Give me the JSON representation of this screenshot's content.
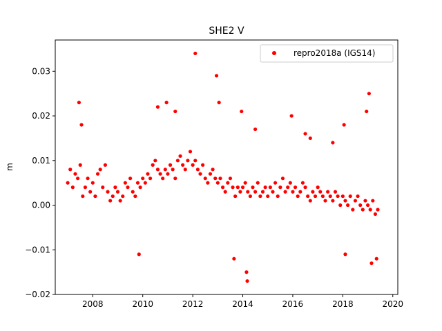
{
  "chart_data": {
    "type": "scatter",
    "title": "SHE2 V",
    "xlabel": "",
    "ylabel": "m",
    "xlim": [
      2006.5,
      2020.2
    ],
    "ylim": [
      -0.02,
      0.037
    ],
    "x_ticks": [
      2008,
      2010,
      2012,
      2014,
      2016,
      2018,
      2020
    ],
    "x_tick_labels": [
      "2008",
      "2010",
      "2012",
      "2014",
      "2016",
      "2018",
      "2020"
    ],
    "y_ticks": [
      -0.02,
      -0.01,
      0.0,
      0.01,
      0.02,
      0.03
    ],
    "y_tick_labels": [
      "−0.02",
      "−0.01",
      "0.00",
      "0.01",
      "0.02",
      "0.03"
    ],
    "grid": false,
    "legend_position": "top-right",
    "marker_color": "#ff0000",
    "series": [
      {
        "name": "repro2018a (IGS14)",
        "x": [
          2007.0,
          2007.1,
          2007.2,
          2007.3,
          2007.4,
          2007.5,
          2007.6,
          2007.7,
          2007.8,
          2007.9,
          2008.0,
          2008.1,
          2008.2,
          2008.3,
          2008.4,
          2008.5,
          2008.6,
          2008.7,
          2008.8,
          2008.9,
          2009.0,
          2009.1,
          2009.2,
          2009.3,
          2009.4,
          2009.5,
          2009.6,
          2009.7,
          2009.8,
          2009.9,
          2010.0,
          2010.1,
          2010.2,
          2010.3,
          2010.4,
          2010.5,
          2010.6,
          2010.7,
          2010.8,
          2010.9,
          2011.0,
          2011.1,
          2011.2,
          2011.3,
          2011.4,
          2011.5,
          2011.6,
          2011.7,
          2011.8,
          2011.9,
          2012.0,
          2012.1,
          2012.2,
          2012.3,
          2012.4,
          2012.5,
          2012.6,
          2012.7,
          2012.8,
          2012.9,
          2013.0,
          2013.1,
          2013.2,
          2013.3,
          2013.4,
          2013.5,
          2013.6,
          2013.7,
          2013.8,
          2013.9,
          2014.0,
          2014.1,
          2014.2,
          2014.3,
          2014.4,
          2014.5,
          2014.6,
          2014.7,
          2014.8,
          2014.9,
          2015.0,
          2015.1,
          2015.2,
          2015.3,
          2015.4,
          2015.5,
          2015.6,
          2015.7,
          2015.8,
          2015.9,
          2016.0,
          2016.1,
          2016.2,
          2016.3,
          2016.4,
          2016.5,
          2016.6,
          2016.7,
          2016.8,
          2016.9,
          2017.0,
          2017.1,
          2017.2,
          2017.3,
          2017.4,
          2017.5,
          2017.6,
          2017.7,
          2017.8,
          2017.9,
          2018.0,
          2018.1,
          2018.2,
          2018.3,
          2018.4,
          2018.5,
          2018.6,
          2018.7,
          2018.8,
          2018.9,
          2019.0,
          2019.1,
          2019.2,
          2019.3,
          2019.4,
          2007.45,
          2007.55,
          2009.85,
          2010.6,
          2010.95,
          2012.1,
          2012.95,
          2013.05,
          2013.65,
          2013.95,
          2014.15,
          2014.18,
          2015.95,
          2016.7,
          2018.05,
          2018.1,
          2018.95,
          2019.05,
          2019.15,
          2019.35,
          2011.3,
          2014.5,
          2016.5,
          2017.6
        ],
        "y": [
          0.005,
          0.008,
          0.004,
          0.007,
          0.006,
          0.009,
          0.002,
          0.004,
          0.006,
          0.003,
          0.005,
          0.002,
          0.007,
          0.008,
          0.004,
          0.009,
          0.003,
          0.001,
          0.002,
          0.004,
          0.003,
          0.001,
          0.002,
          0.005,
          0.004,
          0.006,
          0.003,
          0.002,
          0.005,
          0.004,
          0.006,
          0.005,
          0.007,
          0.006,
          0.009,
          0.01,
          0.008,
          0.007,
          0.006,
          0.008,
          0.007,
          0.009,
          0.008,
          0.006,
          0.01,
          0.011,
          0.009,
          0.008,
          0.01,
          0.012,
          0.009,
          0.01,
          0.008,
          0.007,
          0.009,
          0.006,
          0.005,
          0.007,
          0.008,
          0.006,
          0.005,
          0.006,
          0.004,
          0.003,
          0.005,
          0.006,
          0.004,
          0.002,
          0.004,
          0.003,
          0.004,
          0.005,
          0.003,
          0.002,
          0.004,
          0.003,
          0.005,
          0.002,
          0.003,
          0.004,
          0.002,
          0.004,
          0.003,
          0.005,
          0.002,
          0.004,
          0.006,
          0.003,
          0.004,
          0.005,
          0.003,
          0.004,
          0.002,
          0.003,
          0.005,
          0.004,
          0.002,
          0.001,
          0.003,
          0.002,
          0.004,
          0.003,
          0.002,
          0.001,
          0.003,
          0.002,
          0.001,
          0.003,
          0.002,
          0.0,
          0.002,
          0.001,
          0.0,
          0.002,
          -0.001,
          0.001,
          0.002,
          0.0,
          -0.001,
          0.001,
          0.0,
          -0.001,
          0.001,
          -0.002,
          -0.001,
          0.023,
          0.018,
          -0.011,
          0.022,
          0.023,
          0.034,
          0.029,
          0.023,
          -0.012,
          0.021,
          -0.015,
          -0.017,
          0.02,
          0.015,
          0.018,
          -0.011,
          0.021,
          0.025,
          -0.013,
          -0.012,
          0.021,
          0.017,
          0.016,
          0.014
        ]
      }
    ]
  }
}
